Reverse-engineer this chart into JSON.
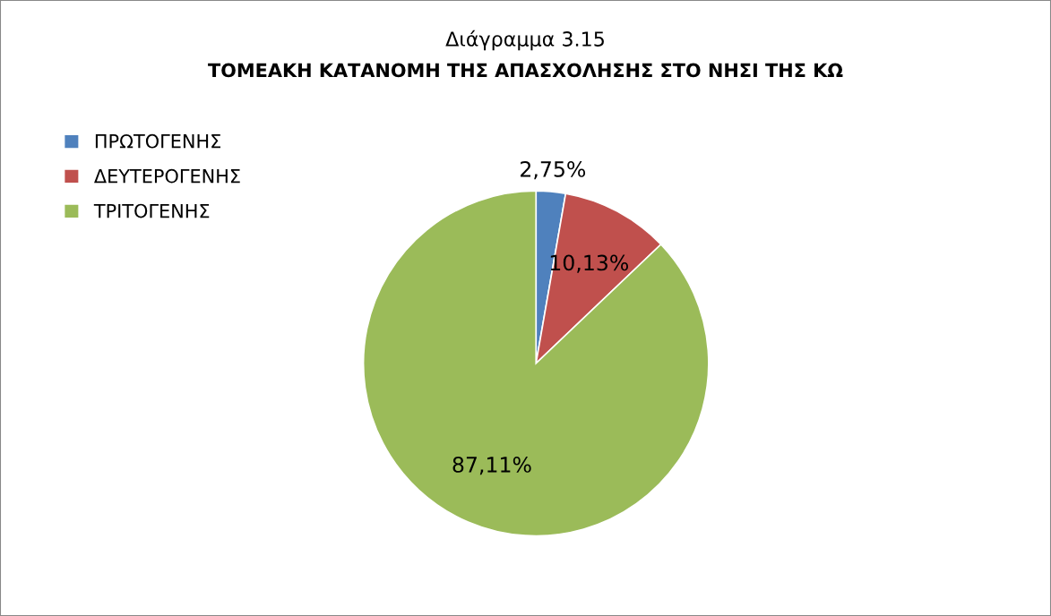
{
  "chart_data": {
    "type": "pie",
    "title": "Διάγραμμα 3.15",
    "subtitle": "ΤΟΜΕΑΚΗ ΚΑΤΑΝΟΜΗ ΤΗΣ ΑΠΑΣΧΟΛΗΣΗΣ ΣΤΟ ΝΗΣΙ ΤΗΣ ΚΩ",
    "categories": [
      "ΠΡΩΤΟΓΕΝΗΣ",
      "ΔΕΥΤΕΡΟΓΕΝΗΣ",
      "ΤΡΙΤΟΓΕΝΗΣ"
    ],
    "values": [
      2.75,
      10.13,
      87.11
    ],
    "value_labels": [
      "2,75%",
      "10,13%",
      "87,11%"
    ],
    "colors": [
      "#4f81bd",
      "#c0504d",
      "#9bbb59"
    ],
    "legend": "top left"
  }
}
